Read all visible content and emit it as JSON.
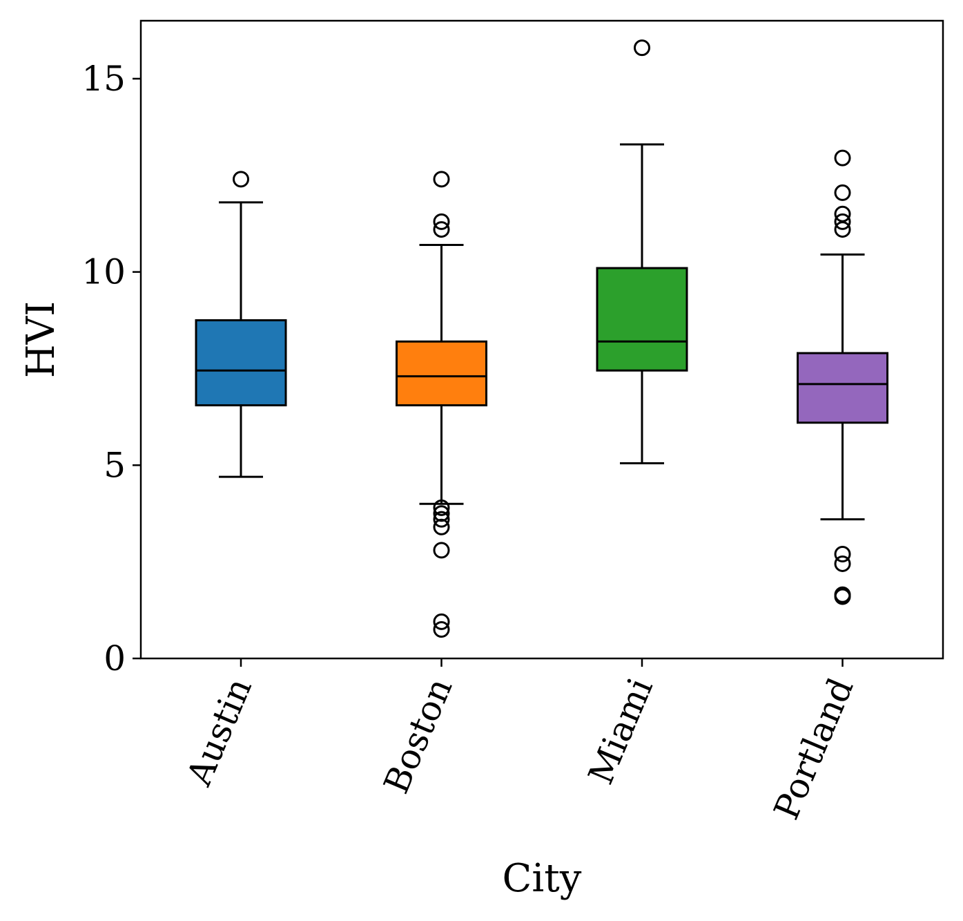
{
  "chart_data": {
    "type": "box",
    "xlabel": "City",
    "ylabel": "HVI",
    "ylim": [
      0,
      16.5
    ],
    "yticks": [
      0,
      5,
      10,
      15
    ],
    "ytick_labels": [
      "0",
      "5",
      "10",
      "15"
    ],
    "categories": [
      "Austin",
      "Boston",
      "Miami",
      "Portland"
    ],
    "series": [
      {
        "name": "Austin",
        "color": "#1f77b4",
        "whisker_low": 4.7,
        "q1": 6.55,
        "median": 7.45,
        "q3": 8.75,
        "whisker_high": 11.8,
        "outliers": [
          12.4
        ]
      },
      {
        "name": "Boston",
        "color": "#ff7f0e",
        "whisker_low": 4.0,
        "q1": 6.55,
        "median": 7.3,
        "q3": 8.2,
        "whisker_high": 10.7,
        "outliers": [
          12.4,
          11.3,
          11.1,
          3.9,
          3.75,
          3.6,
          3.4,
          2.8,
          0.95,
          0.75
        ]
      },
      {
        "name": "Miami",
        "color": "#2ca02c",
        "whisker_low": 5.05,
        "q1": 7.45,
        "median": 8.2,
        "q3": 10.1,
        "whisker_high": 13.3,
        "outliers": [
          15.8
        ]
      },
      {
        "name": "Portland",
        "color": "#9467bd",
        "whisker_low": 3.6,
        "q1": 6.1,
        "median": 7.1,
        "q3": 7.9,
        "whisker_high": 10.45,
        "outliers": [
          12.95,
          12.05,
          11.5,
          11.3,
          11.1,
          2.7,
          2.45,
          1.65,
          1.6
        ]
      }
    ]
  }
}
